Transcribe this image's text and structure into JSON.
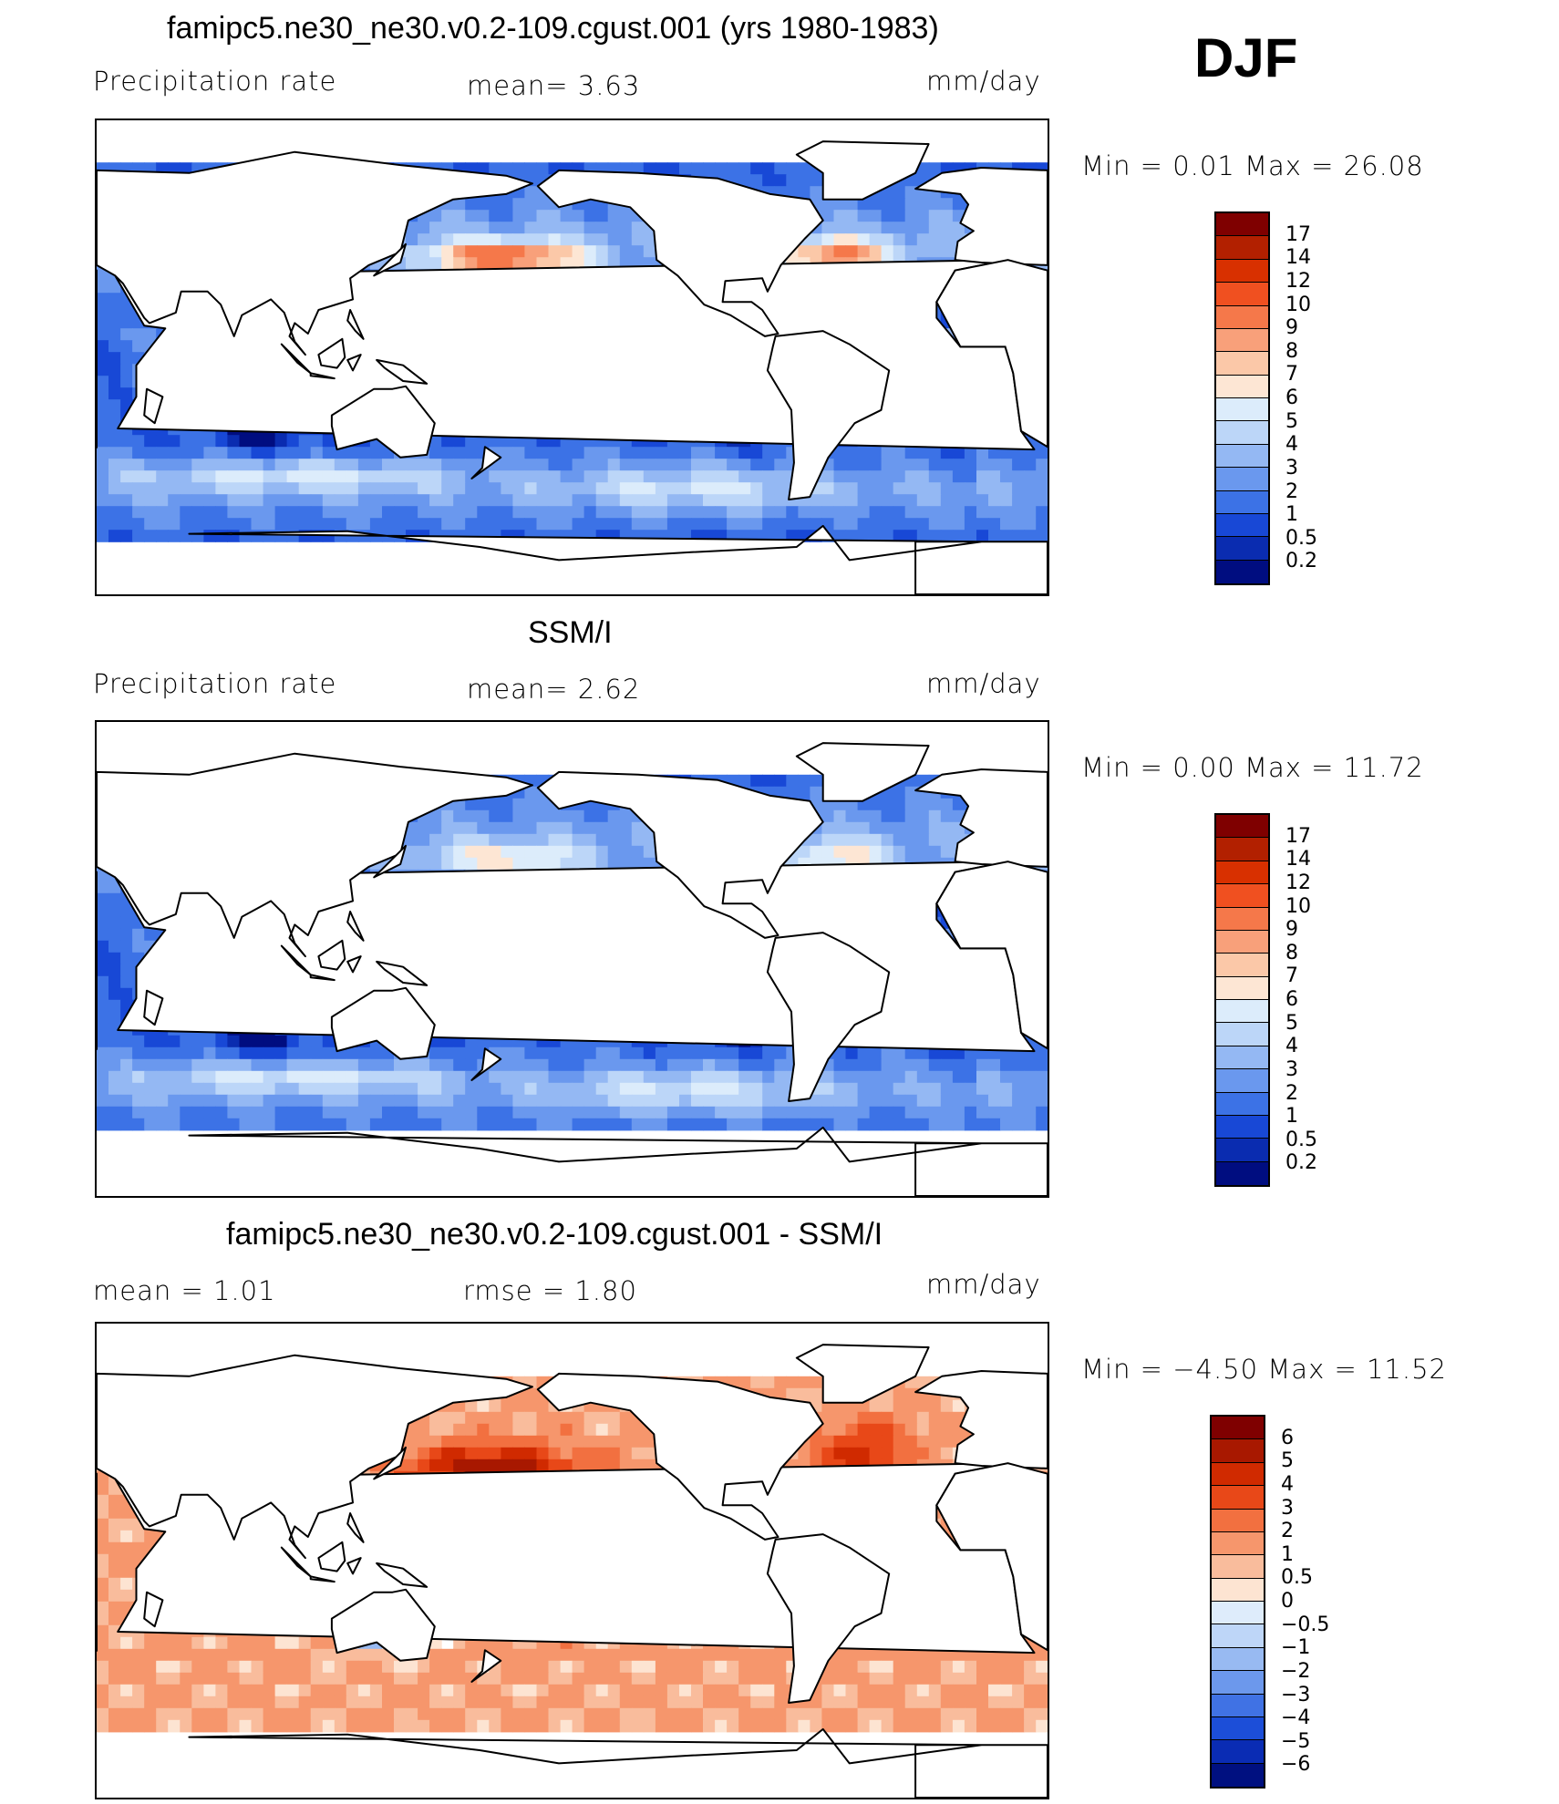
{
  "season": "DJF",
  "panels": [
    {
      "title": "famipc5.ne30_ne30.v0.2-109.cgust.001 (yrs 1980-1983)",
      "left_label": "Precipitation  rate",
      "mid_label": "mean=    3.63",
      "unit": "mm/day",
      "minmax": "Min  =     0.01  Max  =     26.08",
      "palette": "precip",
      "colorbar_labels": [
        "17",
        "14",
        "12",
        "10",
        "9",
        "8",
        "7",
        "6",
        "5",
        "4",
        "3",
        "2",
        "1",
        "0.5",
        "0.2"
      ],
      "colorbar_colors": [
        "#7f0000",
        "#b22000",
        "#d83000",
        "#f05020",
        "#f5784a",
        "#f8a07a",
        "#fbc8a8",
        "#fde6d4",
        "#dcecfb",
        "#bcd6f8",
        "#94b8f3",
        "#6a98ee",
        "#3c72e6",
        "#1848d6",
        "#0a2cb0",
        "#000d80"
      ]
    },
    {
      "title": "SSM/I",
      "left_label": "Precipitation  rate",
      "mid_label": "mean=    2.62",
      "unit": "mm/day",
      "minmax": "Min  =     0.00  Max  =     11.72",
      "palette": "precip",
      "colorbar_labels": [
        "17",
        "14",
        "12",
        "10",
        "9",
        "8",
        "7",
        "6",
        "5",
        "4",
        "3",
        "2",
        "1",
        "0.5",
        "0.2"
      ],
      "colorbar_colors": [
        "#7f0000",
        "#b22000",
        "#d83000",
        "#f05020",
        "#f5784a",
        "#f8a07a",
        "#fbc8a8",
        "#fde6d4",
        "#dcecfb",
        "#bcd6f8",
        "#94b8f3",
        "#6a98ee",
        "#3c72e6",
        "#1848d6",
        "#0a2cb0",
        "#000d80"
      ]
    },
    {
      "title": "famipc5.ne30_ne30.v0.2-109.cgust.001 - SSM/I",
      "left_label": "mean  =     1.01",
      "mid_label": "rmse  =     1.80",
      "unit": "mm/day",
      "minmax": "Min  =   −4.50  Max  =     11.52",
      "palette": "diff",
      "colorbar_labels": [
        "6",
        "5",
        "4",
        "3",
        "2",
        "1",
        "0.5",
        "0",
        "−0.5",
        "−1",
        "−2",
        "−3",
        "−4",
        "−5",
        "−6"
      ],
      "colorbar_colors": [
        "#7f0000",
        "#a81800",
        "#d02a00",
        "#e84818",
        "#f27040",
        "#f6966c",
        "#f9bc9c",
        "#fde4d2",
        "#deecfb",
        "#bed6f8",
        "#98baf2",
        "#6c98ec",
        "#4072e4",
        "#1c4ed8",
        "#0a2cb4",
        "#001080"
      ]
    }
  ]
}
